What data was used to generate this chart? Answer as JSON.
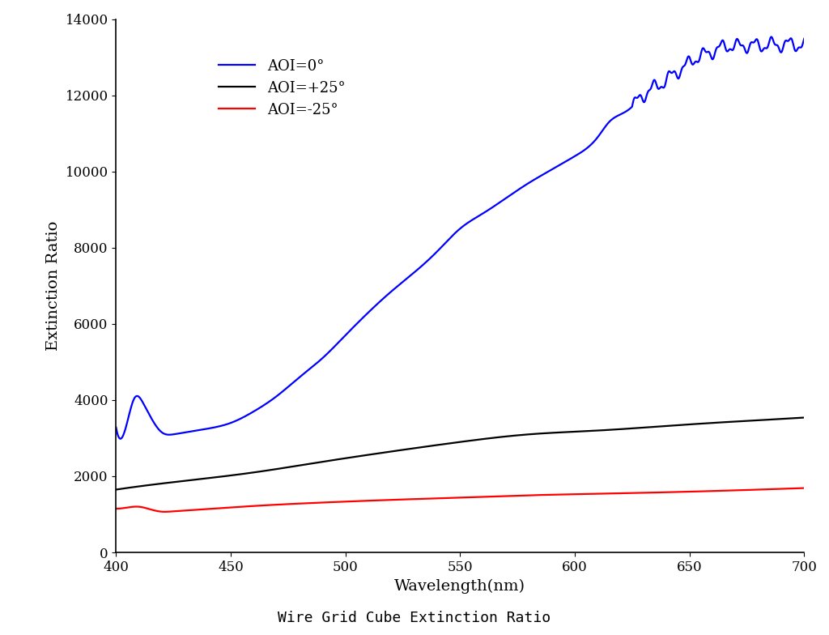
{
  "title": "Wire Grid Cube Extinction Ratio",
  "xlabel": "Wavelength(nm)",
  "ylabel": "Extinction Ratio",
  "xlim": [
    400,
    700
  ],
  "ylim": [
    0,
    14000
  ],
  "yticks": [
    0,
    2000,
    4000,
    6000,
    8000,
    10000,
    12000,
    14000
  ],
  "xticks": [
    400,
    450,
    500,
    550,
    600,
    650,
    700
  ],
  "blue_wl": [
    400,
    405,
    408,
    412,
    420,
    425,
    430,
    440,
    450,
    460,
    470,
    480,
    490,
    500,
    510,
    520,
    530,
    540,
    550,
    560,
    570,
    580,
    590,
    600,
    610,
    615,
    620,
    625,
    628,
    632,
    636,
    640,
    644,
    648,
    652,
    656,
    660,
    664,
    668,
    672,
    676,
    680,
    684,
    688,
    692,
    696,
    700
  ],
  "blue_val": [
    3280,
    3450,
    4050,
    3900,
    3150,
    3100,
    3150,
    3250,
    3400,
    3700,
    4100,
    4600,
    5100,
    5700,
    6300,
    6850,
    7350,
    7900,
    8500,
    8900,
    9300,
    9700,
    10050,
    10400,
    10900,
    11300,
    11500,
    11700,
    11900,
    12100,
    12250,
    12400,
    12600,
    12750,
    12950,
    13050,
    13150,
    13250,
    13300,
    13280,
    13320,
    13300,
    13330,
    13320,
    13340,
    13330,
    13340
  ],
  "black_wl": [
    400,
    430,
    460,
    490,
    520,
    550,
    580,
    610,
    640,
    660,
    680,
    700
  ],
  "black_val": [
    1650,
    1880,
    2100,
    2380,
    2650,
    2900,
    3100,
    3200,
    3320,
    3400,
    3470,
    3540
  ],
  "red_wl": [
    400,
    405,
    410,
    415,
    420,
    425,
    430,
    440,
    460,
    490,
    520,
    550,
    580,
    610,
    640,
    670,
    700
  ],
  "red_val": [
    1150,
    1180,
    1200,
    1130,
    1070,
    1080,
    1100,
    1140,
    1220,
    1310,
    1380,
    1440,
    1500,
    1540,
    1580,
    1630,
    1690
  ],
  "series": [
    {
      "label": "AOI=0°",
      "color": "blue",
      "linewidth": 1.6
    },
    {
      "label": "AOI=+25°",
      "color": "black",
      "linewidth": 1.6
    },
    {
      "label": "AOI=-25°",
      "color": "red",
      "linewidth": 1.6
    }
  ],
  "legend_fontsize": 13,
  "axis_label_fontsize": 14,
  "tick_fontsize": 12,
  "title_fontsize": 13,
  "background_color": "#ffffff"
}
